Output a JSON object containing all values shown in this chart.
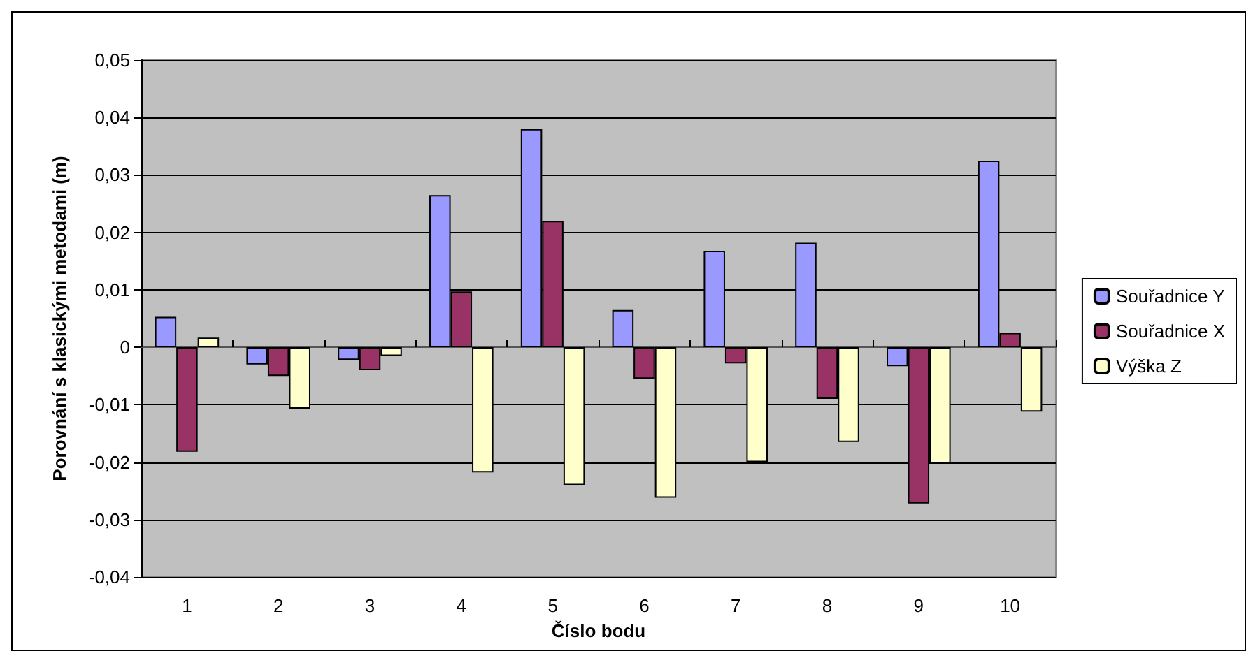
{
  "chart_data": {
    "type": "bar",
    "xlabel": "Číslo bodu",
    "ylabel": "Porovnání s klasickými metodami (m)",
    "categories": [
      "1",
      "2",
      "3",
      "4",
      "5",
      "6",
      "7",
      "8",
      "9",
      "10"
    ],
    "series": [
      {
        "name": "Souřadnice Y",
        "color": "#9999ff",
        "values": [
          0.0053,
          -0.003,
          -0.0022,
          0.0265,
          0.038,
          0.0065,
          0.0168,
          0.0182,
          -0.0033,
          0.0325
        ]
      },
      {
        "name": "Souřadnice X",
        "color": "#993366",
        "values": [
          -0.0182,
          -0.005,
          -0.004,
          0.0097,
          0.022,
          -0.0055,
          -0.0028,
          -0.009,
          -0.0272,
          0.0025
        ]
      },
      {
        "name": "Výška Z",
        "color": "#ffffcc",
        "values": [
          0.0017,
          -0.0107,
          -0.0015,
          -0.0218,
          -0.024,
          -0.0262,
          -0.02,
          -0.0165,
          -0.0203,
          -0.0112
        ]
      }
    ],
    "ylim": [
      -0.04,
      0.05
    ],
    "yticks": [
      {
        "value": -0.04,
        "label": "-0,04"
      },
      {
        "value": -0.03,
        "label": "-0,03"
      },
      {
        "value": -0.02,
        "label": "-0,02"
      },
      {
        "value": -0.01,
        "label": "-0,01"
      },
      0,
      {
        "value": 0.01,
        "label": "0,01"
      },
      {
        "value": 0.02,
        "label": "0,02"
      },
      {
        "value": 0.03,
        "label": "0,03"
      },
      {
        "value": 0.04,
        "label": "0,04"
      },
      {
        "value": 0.05,
        "label": "0,05"
      }
    ],
    "grid": "y",
    "legend": "right"
  }
}
